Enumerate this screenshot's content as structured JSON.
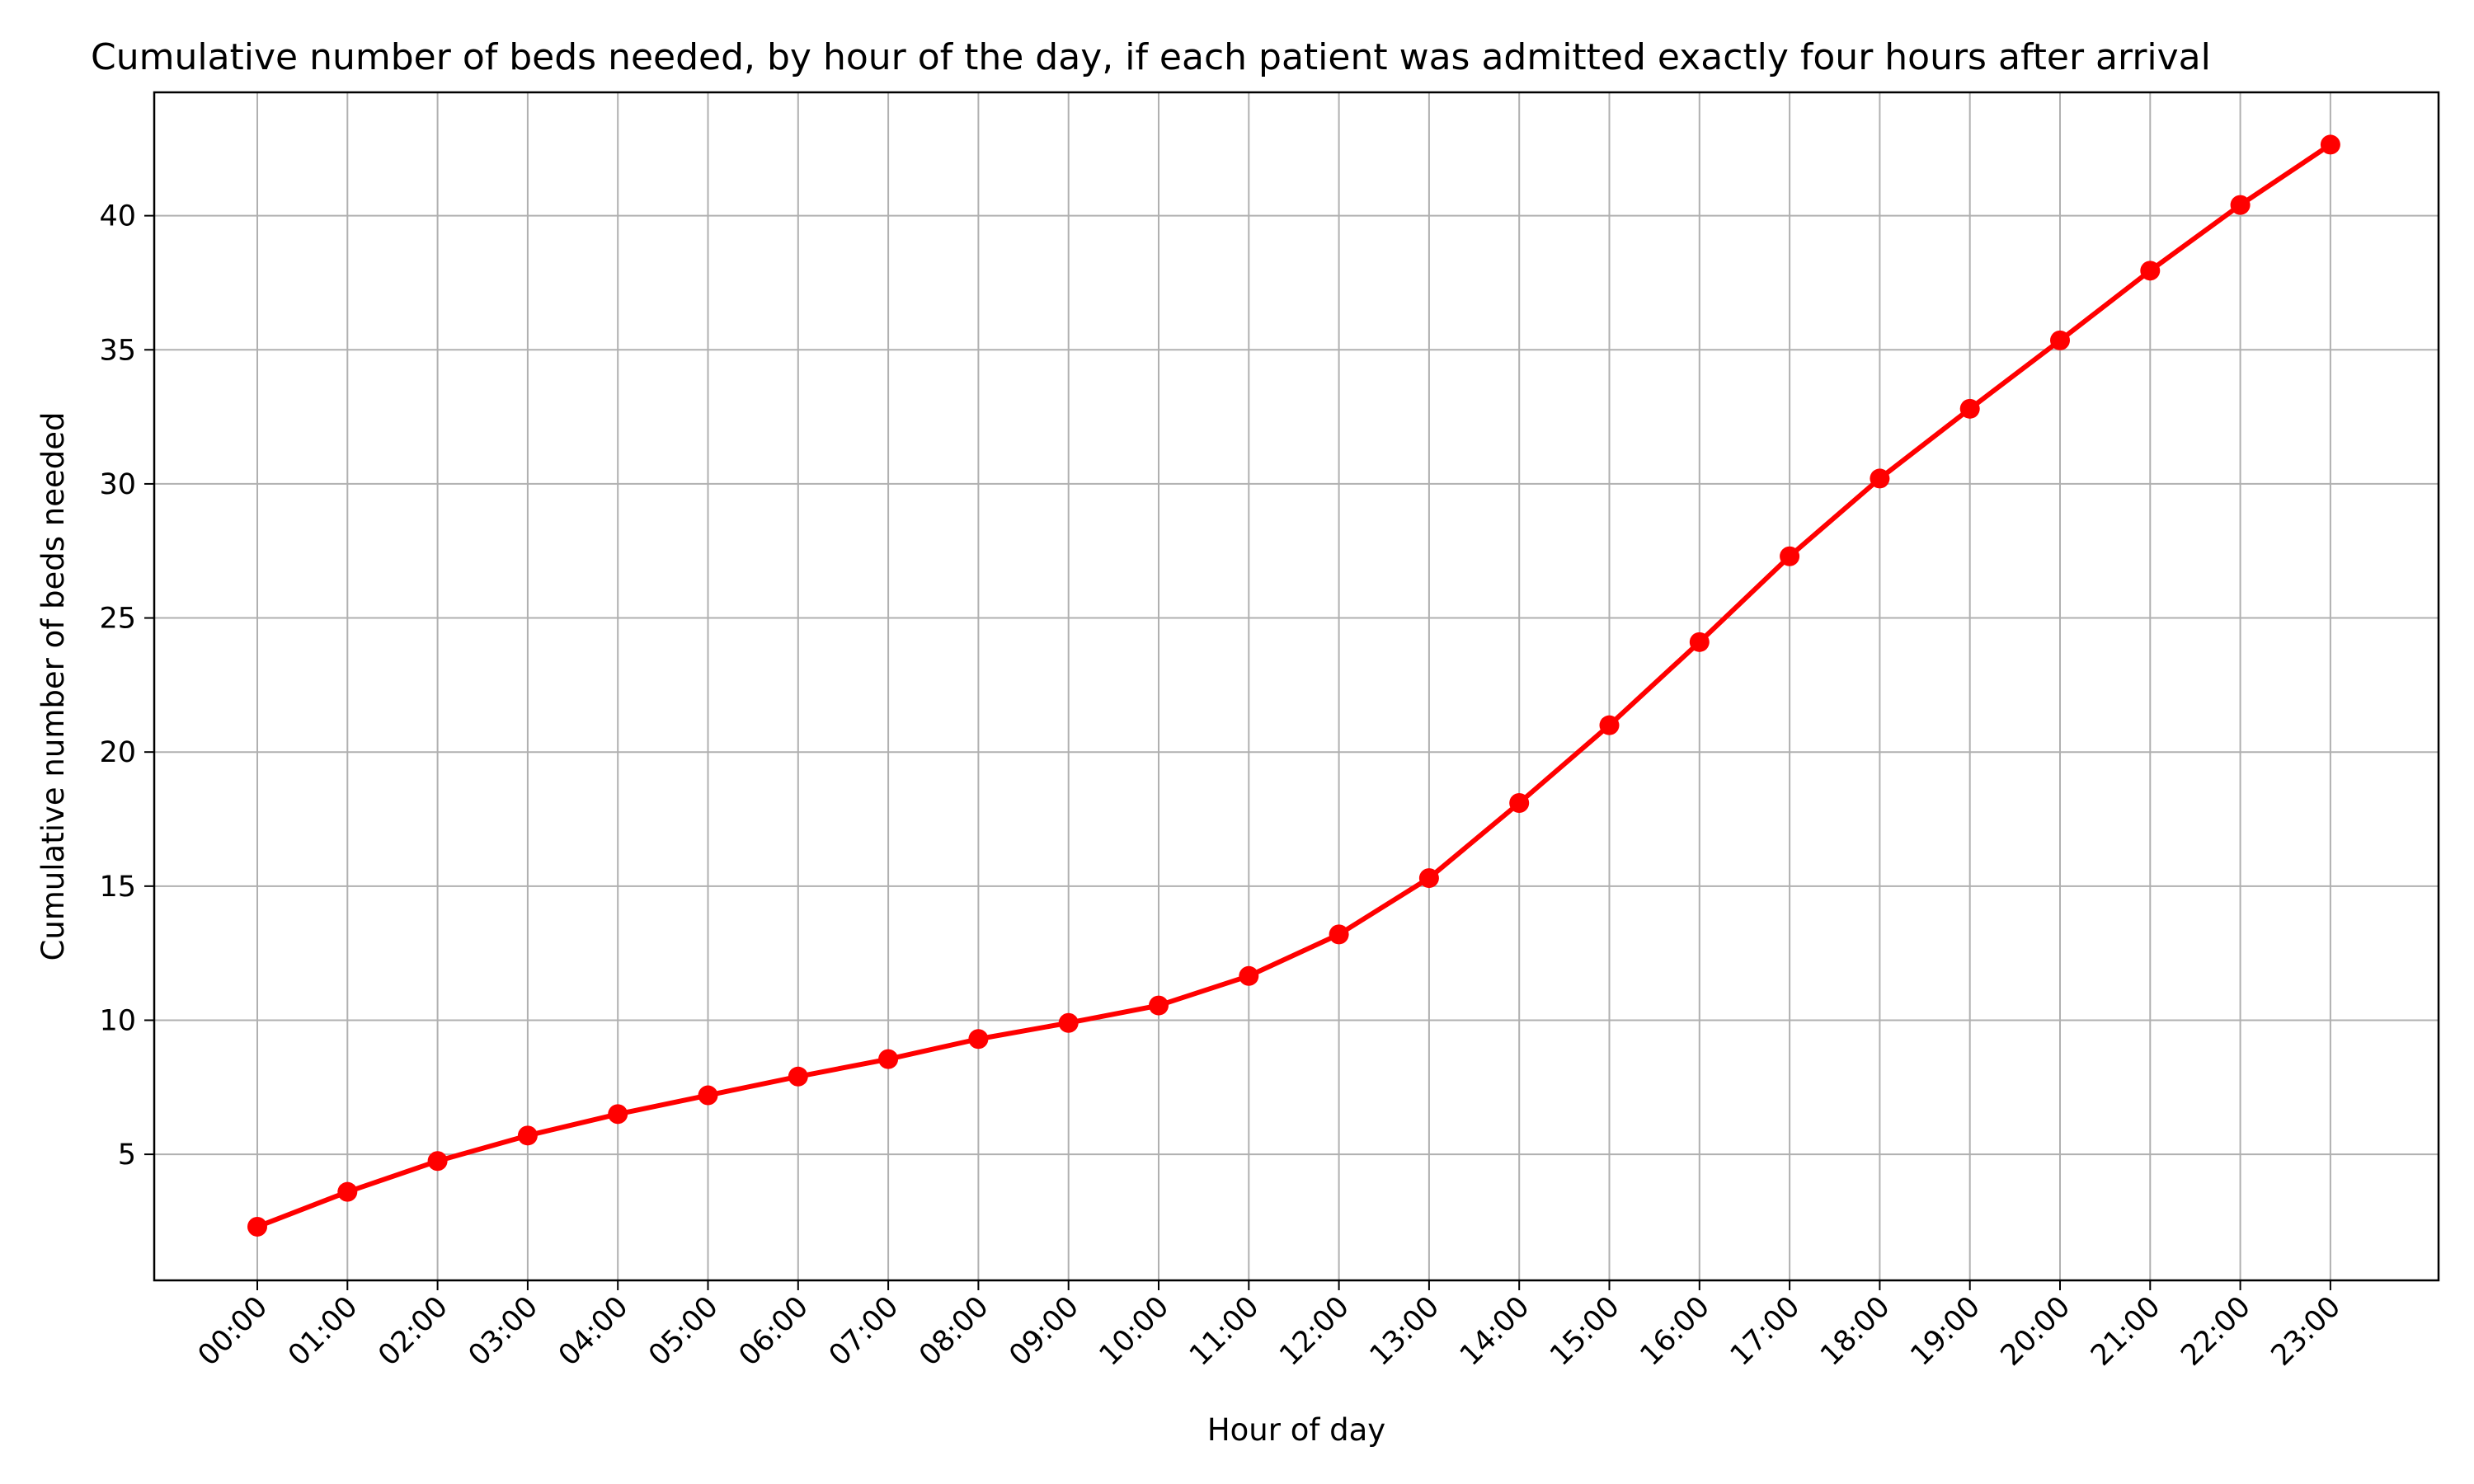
{
  "chart_data": {
    "type": "line",
    "title": "Cumulative number of beds needed, by hour of the day, if each patient was admitted exactly four hours after arrival",
    "xlabel": "Hour of day",
    "ylabel": "Cumulative number of beds needed",
    "categories": [
      "00:00",
      "01:00",
      "02:00",
      "03:00",
      "04:00",
      "05:00",
      "06:00",
      "07:00",
      "08:00",
      "09:00",
      "10:00",
      "11:00",
      "12:00",
      "13:00",
      "14:00",
      "15:00",
      "16:00",
      "17:00",
      "18:00",
      "19:00",
      "20:00",
      "21:00",
      "22:00",
      "23:00"
    ],
    "series": [
      {
        "values": [
          2.3,
          3.6,
          4.75,
          5.7,
          6.5,
          7.2,
          7.9,
          8.55,
          9.3,
          9.9,
          10.55,
          11.65,
          13.2,
          15.3,
          18.1,
          21.0,
          24.1,
          27.3,
          30.2,
          32.8,
          35.35,
          37.95,
          40.4,
          42.65
        ],
        "color": "#ff0000"
      }
    ],
    "yticks": [
      5,
      10,
      15,
      20,
      25,
      30,
      35,
      40
    ],
    "ylim": [
      0.3,
      44.6
    ],
    "grid": true,
    "legend": false
  }
}
